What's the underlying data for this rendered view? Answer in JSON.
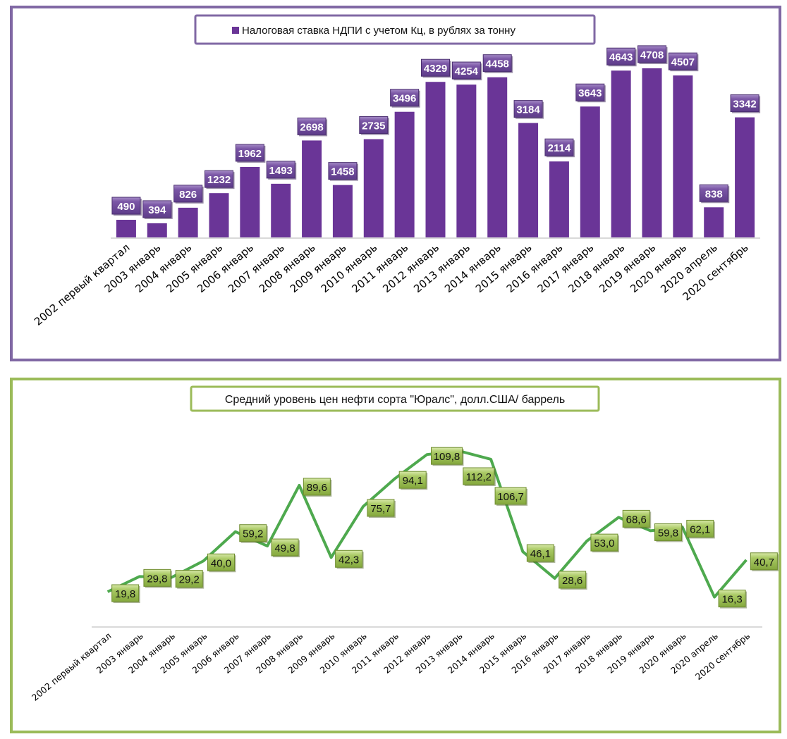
{
  "chart_data": [
    {
      "type": "bar",
      "title": "",
      "legend": {
        "label": "Налоговая ставка НДПИ с учетом Кц, в рублях за тонну",
        "position": "top"
      },
      "categories": [
        "2002 первый квартал",
        "2003 январь",
        "2004 январь",
        "2005 январь",
        "2006 январь",
        "2007 январь",
        "2008 январь",
        "2009 январь",
        "2010 январь",
        "2011 январь",
        "2012 январь",
        "2013 январь",
        "2014 январь",
        "2015 январь",
        "2016 январь",
        "2017 январь",
        "2018 январь",
        "2019 январь",
        "2020 январь",
        "2020 апрель",
        "2020 сентябрь"
      ],
      "series": [
        {
          "name": "Налоговая ставка НДПИ с учетом Кц, в рублях за тонну",
          "values": [
            490,
            394,
            826,
            1232,
            1962,
            1493,
            2698,
            1458,
            2735,
            3496,
            4329,
            4254,
            4458,
            3184,
            2114,
            3643,
            4643,
            4708,
            4507,
            838,
            3342
          ]
        }
      ],
      "data_labels": [
        "490",
        "394",
        "826",
        "1232",
        "1962",
        "1493",
        "2698",
        "1458",
        "2735",
        "3496",
        "4329",
        "4254",
        "4458",
        "3184",
        "2114",
        "3643",
        "4643",
        "4708",
        "4507",
        "838",
        "3342"
      ],
      "ylim": [
        0,
        5000
      ],
      "grid": false,
      "colors": {
        "bar": "#6a3597",
        "label_bg": "#7e5aa8",
        "border": "#8068a4"
      }
    },
    {
      "type": "line",
      "title": "Средний уровень цен нефти сорта \"Юралс\", долл.США/ баррель",
      "categories": [
        "2002 первый квартал",
        "2003 январь",
        "2004 январь",
        "2005 январь",
        "2006 январь",
        "2007 январь",
        "2008 январь",
        "2009 январь",
        "2010 январь",
        "2011 январь",
        "2012 январь",
        "2013 январь",
        "2014 январь",
        "2015 январь",
        "2016 январь",
        "2017 январь",
        "2018 январь",
        "2019 январь",
        "2020 январь",
        "2020 апрель",
        "2020 сентябрь"
      ],
      "series": [
        {
          "name": "Юралс",
          "values": [
            19.8,
            29.8,
            29.2,
            40.0,
            59.2,
            49.8,
            89.6,
            42.3,
            75.7,
            94.1,
            109.8,
            112.2,
            106.7,
            46.1,
            28.6,
            53.0,
            68.6,
            59.8,
            62.1,
            16.3,
            40.7
          ]
        }
      ],
      "data_labels": [
        "19,8",
        "29,8",
        "29,2",
        "40,0",
        "59,2",
        "49,8",
        "89,6",
        "42,3",
        "75,7",
        "94,1",
        "109,8",
        "112,2",
        "106,7",
        "46,1",
        "28,6",
        "53,0",
        "68,6",
        "59,8",
        "62,1",
        "16,3",
        "40,7"
      ],
      "ylim": [
        0,
        125
      ],
      "grid": false,
      "colors": {
        "line": "#4ea94e",
        "label_bg": "#9bbb59",
        "border": "#9bbb59"
      }
    }
  ]
}
